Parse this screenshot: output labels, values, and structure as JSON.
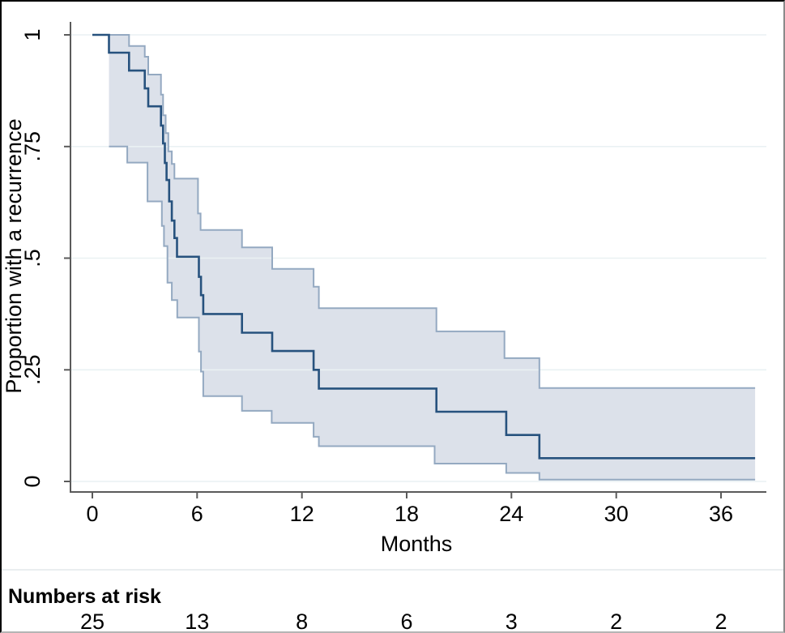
{
  "figure": {
    "background": "#ffffff",
    "border_color": "#000000"
  },
  "colors": {
    "estimate_line": "#27527e",
    "ci_edge_line": "#94a9c1",
    "ci_fill": "#dce1ea",
    "gridline": "#eaf1f3",
    "axis": "#5a5a5a",
    "text": "#000000"
  },
  "chart_data": {
    "type": "line",
    "subtype": "kaplan-meier-step-with-confidence-band",
    "title": "",
    "xlabel": "Months",
    "ylabel": "Proportion with a recurrence",
    "xlim": [
      0,
      38.6
    ],
    "ylim": [
      0,
      1
    ],
    "x_ticks": [
      0,
      6,
      12,
      18,
      24,
      30,
      36
    ],
    "x_tick_labels": [
      "0",
      "6",
      "12",
      "18",
      "24",
      "30",
      "36"
    ],
    "y_ticks": [
      0,
      0.25,
      0.5,
      0.75,
      1
    ],
    "y_tick_labels": [
      "0",
      ".25",
      ".5",
      ".75",
      "1"
    ],
    "grid": true,
    "legend": "none",
    "end_x": 37.95,
    "series": [
      {
        "name": "estimate",
        "points": [
          [
            0,
            1.0
          ],
          [
            0.95,
            0.96
          ],
          [
            2.1,
            0.92
          ],
          [
            3.0,
            0.88
          ],
          [
            3.2,
            0.84
          ],
          [
            3.93,
            0.797
          ],
          [
            4.05,
            0.757
          ],
          [
            4.15,
            0.713
          ],
          [
            4.25,
            0.675
          ],
          [
            4.4,
            0.627
          ],
          [
            4.55,
            0.584
          ],
          [
            4.7,
            0.545
          ],
          [
            4.85,
            0.503
          ],
          [
            6.1,
            0.458
          ],
          [
            6.22,
            0.417
          ],
          [
            6.35,
            0.375
          ],
          [
            8.57,
            0.333
          ],
          [
            10.3,
            0.292
          ],
          [
            12.67,
            0.25
          ],
          [
            12.97,
            0.208
          ],
          [
            19.7,
            0.156
          ],
          [
            23.7,
            0.104
          ],
          [
            25.6,
            0.052
          ]
        ]
      },
      {
        "name": "ci_upper",
        "points": [
          [
            0.95,
            1.0
          ],
          [
            2.1,
            0.975
          ],
          [
            3.0,
            0.951
          ],
          [
            3.2,
            0.911
          ],
          [
            3.93,
            0.866
          ],
          [
            4.05,
            0.82
          ],
          [
            4.2,
            0.78
          ],
          [
            4.35,
            0.739
          ],
          [
            4.55,
            0.711
          ],
          [
            4.7,
            0.678
          ],
          [
            6.05,
            0.6
          ],
          [
            6.2,
            0.563
          ],
          [
            8.57,
            0.524
          ],
          [
            10.3,
            0.476
          ],
          [
            12.67,
            0.436
          ],
          [
            12.97,
            0.388
          ],
          [
            19.7,
            0.336
          ],
          [
            23.6,
            0.276
          ],
          [
            25.6,
            0.209
          ]
        ]
      },
      {
        "name": "ci_lower",
        "points": [
          [
            0.95,
            0.75
          ],
          [
            2.0,
            0.714
          ],
          [
            3.16,
            0.627
          ],
          [
            3.98,
            0.572
          ],
          [
            4.1,
            0.527
          ],
          [
            4.3,
            0.445
          ],
          [
            4.55,
            0.406
          ],
          [
            4.86,
            0.367
          ],
          [
            6.1,
            0.291
          ],
          [
            6.22,
            0.246
          ],
          [
            6.35,
            0.191
          ],
          [
            8.57,
            0.158
          ],
          [
            10.27,
            0.131
          ],
          [
            12.67,
            0.1
          ],
          [
            12.97,
            0.079
          ],
          [
            19.6,
            0.04
          ],
          [
            23.7,
            0.019
          ],
          [
            25.6,
            0.004
          ]
        ]
      }
    ],
    "numbers_at_risk": {
      "label": "Numbers at risk",
      "times": [
        0,
        6,
        12,
        18,
        24,
        30,
        36
      ],
      "counts": [
        "25",
        "13",
        "8",
        "6",
        "3",
        "2",
        "2"
      ]
    }
  }
}
